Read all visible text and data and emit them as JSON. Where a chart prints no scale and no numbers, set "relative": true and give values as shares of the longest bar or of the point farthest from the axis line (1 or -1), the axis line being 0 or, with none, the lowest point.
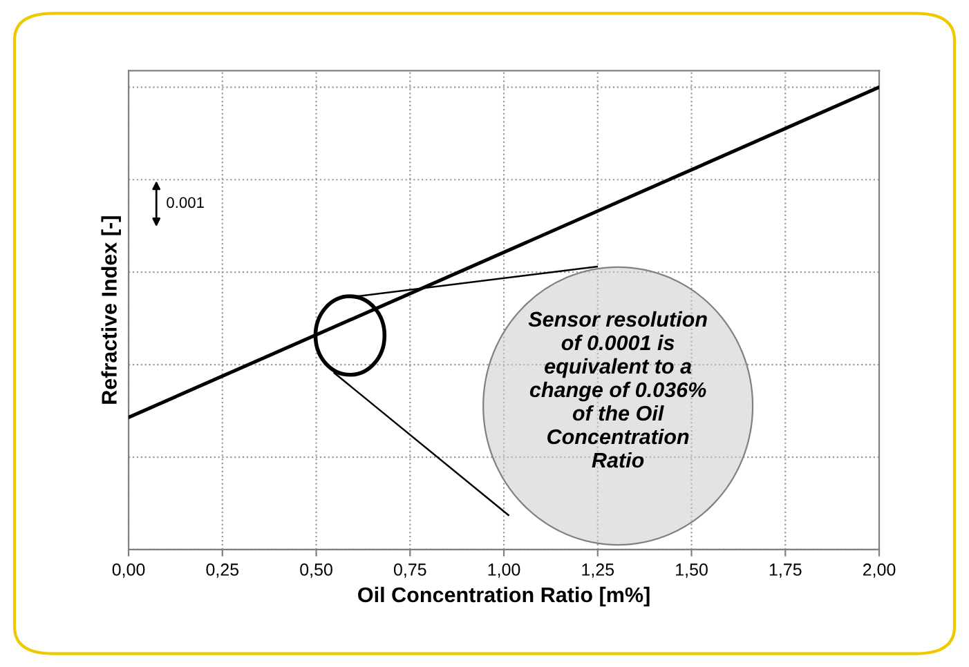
{
  "chart_data": {
    "type": "line",
    "xlabel": "Oil Concentration Ratio [m%]",
    "ylabel": "Refractive Index [-]",
    "relative": true,
    "x": [
      0,
      2
    ],
    "values": [
      0.286,
      1
    ],
    "color": "#000000",
    "xlim": [
      0,
      2
    ],
    "xticks": [
      {
        "value": 0,
        "label": "0,00"
      },
      {
        "value": 0.25,
        "label": "0,25"
      },
      {
        "value": 0.5,
        "label": "0,50"
      },
      {
        "value": 0.75,
        "label": "0,75"
      },
      {
        "value": 1,
        "label": "1,00"
      },
      {
        "value": 1.25,
        "label": "1,25"
      },
      {
        "value": 1.5,
        "label": "1,50"
      },
      {
        "value": 1.75,
        "label": "1,75"
      },
      {
        "value": 2,
        "label": "2,00"
      }
    ],
    "grid": true,
    "marker": "none",
    "line_style": "solid",
    "annotations": [
      "0.001",
      "Sensor resolution\nof 0.0001 is\nequivalent to a\nchange of 0.036%\nof the Oil\nConcentration\nRatio"
    ]
  }
}
